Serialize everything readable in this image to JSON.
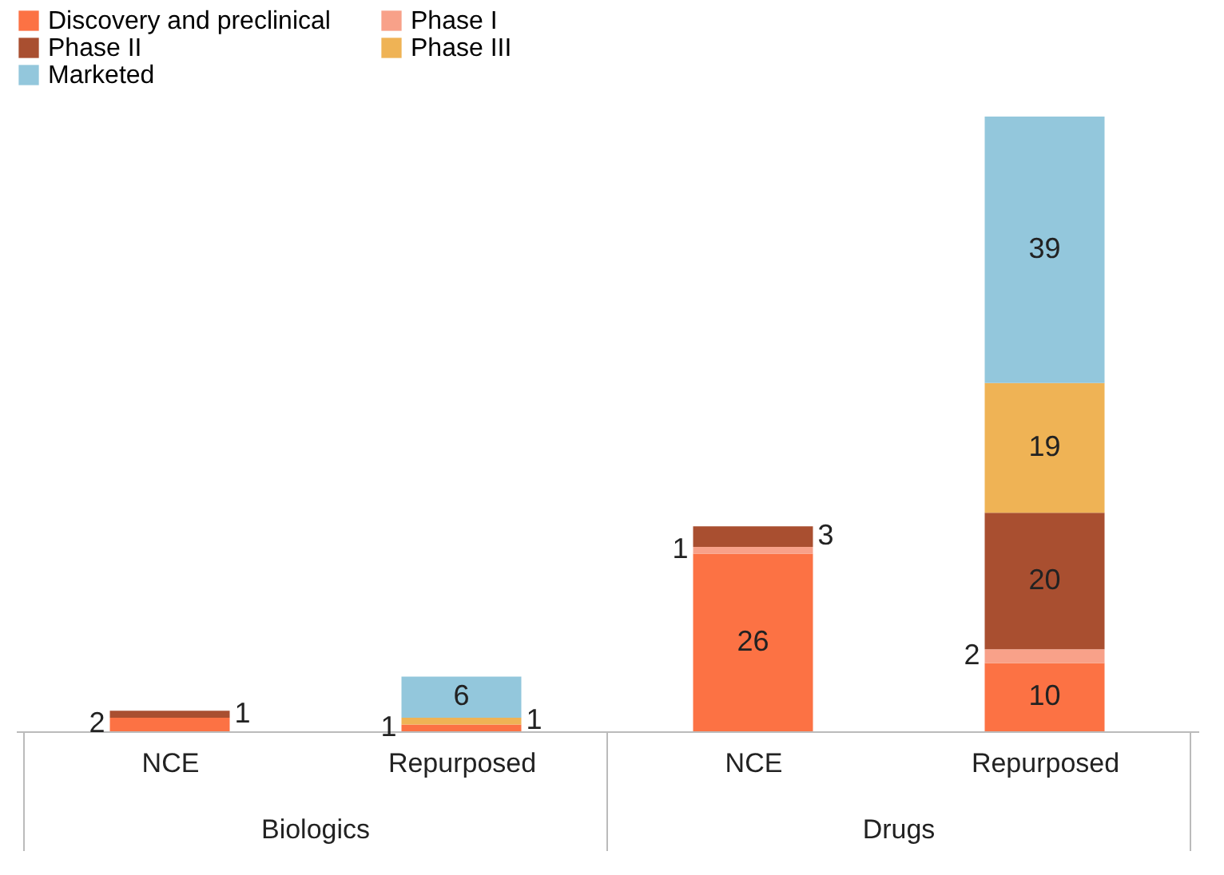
{
  "chart_data": {
    "type": "bar",
    "stacked": true,
    "data_labels": true,
    "legend": "top left",
    "categories": [
      "NCE",
      "Repurposed",
      "NCE",
      "Repurposed"
    ],
    "annotations": [
      "Biologics",
      "Drugs"
    ],
    "series": [
      {
        "name": "Discovery and preclinical",
        "color": "#fc7244",
        "values": [
          2,
          1,
          26,
          10
        ]
      },
      {
        "name": "Phase I",
        "color": "#f8a189",
        "values": [
          null,
          null,
          1,
          2
        ]
      },
      {
        "name": "Phase II",
        "color": "#a94f30",
        "values": [
          1,
          null,
          3,
          20
        ]
      },
      {
        "name": "Phase III",
        "color": "#efb355",
        "values": [
          null,
          1,
          null,
          19
        ]
      },
      {
        "name": "Marketed",
        "color": "#93c7dc",
        "values": [
          null,
          6,
          null,
          39
        ]
      }
    ]
  }
}
